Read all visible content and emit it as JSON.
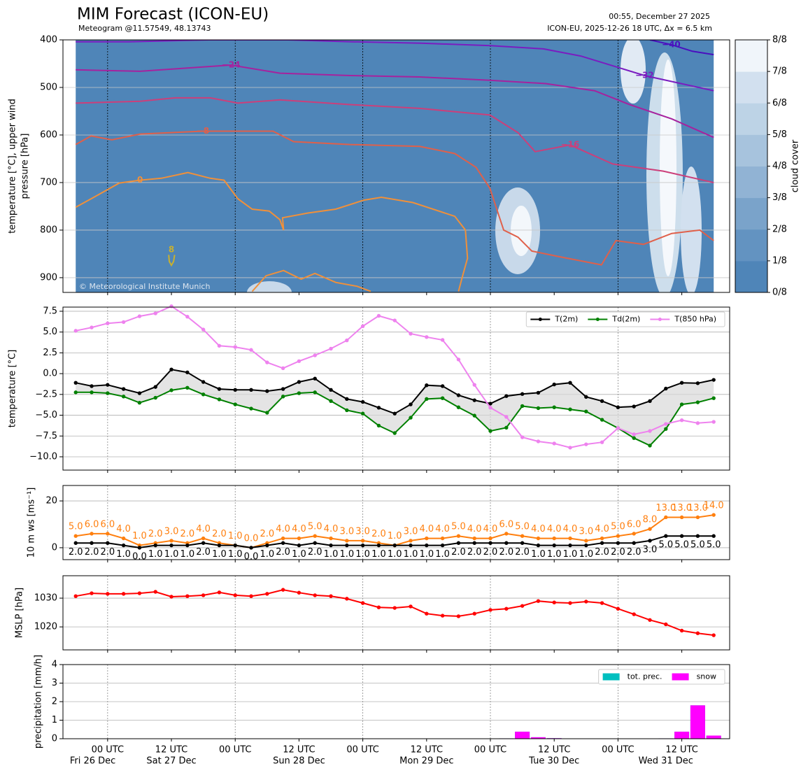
{
  "header": {
    "title": "MIM Forecast (ICON-EU)",
    "subtitle": "Meteogram @11.57549, 48.13743",
    "timestamp": "00:55, December 27 2025",
    "run_info": "ICON-EU, 2025-12-26 18 UTC, Δx = 6.5 km",
    "watermark": "© Meteorological Institute Munich"
  },
  "time_axis": {
    "xlim": [
      -2.4,
      123
    ],
    "xticks": [
      {
        "value": 6,
        "label": "00 UTC"
      },
      {
        "value": 18,
        "label": "12 UTC"
      },
      {
        "value": 30,
        "label": "00 UTC"
      },
      {
        "value": 42,
        "label": "12 UTC"
      },
      {
        "value": 54,
        "label": "00 UTC"
      },
      {
        "value": 66,
        "label": "12 UTC"
      },
      {
        "value": 78,
        "label": "00 UTC"
      },
      {
        "value": 90,
        "label": "12 UTC"
      },
      {
        "value": 102,
        "label": "00 UTC"
      },
      {
        "value": 114,
        "label": "12 UTC"
      }
    ],
    "date_labels": [
      {
        "value": 3.2,
        "label": "Fri 26 Dec"
      },
      {
        "value": 18,
        "label": "Sat 27 Dec"
      },
      {
        "value": 42,
        "label": "Sun 28 Dec"
      },
      {
        "value": 66,
        "label": "Mon 29 Dec"
      },
      {
        "value": 90,
        "label": "Tue 30 Dec"
      },
      {
        "value": 111,
        "label": "Wed 31 Dec"
      }
    ]
  },
  "chart_data": [
    {
      "type": "contour",
      "ylabel": [
        "temperature [°C], upper wind",
        "pressure [hPa]"
      ],
      "ylim": [
        931,
        400
      ],
      "yticks": [
        400,
        500,
        600,
        700,
        800,
        900
      ],
      "grid": true,
      "contours": [
        {
          "label": "−40",
          "color": "#4a0fbf",
          "x": [
            108,
            112,
            116,
            120
          ],
          "p": [
            400,
            410,
            424,
            431
          ]
        },
        {
          "label": "−32",
          "color": "#7a1cc0",
          "x": [
            0,
            10,
            25,
            40,
            52,
            65,
            78,
            88,
            95,
            100,
            107,
            120
          ],
          "p": [
            404,
            404,
            400,
            400,
            404,
            407,
            412,
            419,
            434,
            451,
            475,
            507
          ]
        },
        {
          "label": "−24",
          "color": "#a6229e",
          "x": [
            0,
            12.1,
            20,
            29.2,
            38.4,
            51.6,
            64.7,
            77.9,
            88.4,
            97.6,
            104.2,
            112.1,
            120
          ],
          "p": [
            463,
            466,
            460,
            453,
            470,
            475,
            478,
            485,
            492,
            507,
            536,
            566,
            605
          ]
        },
        {
          "label": "−16",
          "color": "#cc3f7a",
          "x": [
            0,
            12.1,
            18.7,
            25.3,
            30.5,
            38.4,
            51.6,
            64.7,
            77.9,
            83.2,
            86.4,
            93,
            101,
            110.5,
            120
          ],
          "p": [
            533,
            529,
            522,
            522,
            533,
            526,
            536,
            544,
            558,
            595,
            635,
            621,
            661,
            676,
            700
          ]
        },
        {
          "label": "−8",
          "color": "#e0604a",
          "x": [
            0,
            2.9,
            6.8,
            12.1,
            23.9,
            37.1,
            41,
            51.6,
            64.7,
            71.3,
            75.3,
            77.9,
            79.2,
            80.5,
            83.2,
            85.8,
            91,
            98.9,
            101.6,
            106.8,
            112.1,
            117.4,
            120
          ],
          "p": [
            620,
            602,
            610,
            598,
            592,
            592,
            614,
            620,
            624,
            639,
            668,
            712,
            756,
            800,
            815,
            844,
            856,
            873,
            822,
            830,
            807,
            800,
            822
          ]
        },
        {
          "label": "0",
          "color": "#f0903a",
          "x": [
            0,
            2.9,
            8.2,
            12.1,
            16.1,
            21.1,
            25.3,
            27.9,
            30.5,
            33.2,
            36.4,
            38.4,
            39.1,
            38.9,
            43.7,
            48.9,
            54.2,
            57.5,
            63.4,
            71.3,
            73.3,
            73.7,
            72.6,
            72,
            null,
            33.2,
            35.8,
            39.1,
            42.4,
            45,
            48.9,
            52.9,
            55.5
          ],
          "p": [
            752,
            734,
            701,
            695,
            691,
            679,
            691,
            695,
            734,
            756,
            760,
            778,
            800,
            774,
            764,
            756,
            737,
            731,
            742,
            771,
            800,
            859,
            903,
            929,
            null,
            929,
            896,
            885,
            903,
            891,
            910,
            918,
            929
          ]
        },
        {
          "label": "8",
          "color": "#c8b030",
          "x": [
            17.5,
            17.6,
            18,
            18.4,
            18.6
          ],
          "p": [
            852,
            866,
            874,
            866,
            852
          ]
        }
      ],
      "colorbar": {
        "label": "cloud cover",
        "ticks": [
          "0/8",
          "1/8",
          "2/8",
          "3/8",
          "4/8",
          "5/8",
          "6/8",
          "7/8",
          "8/8"
        ],
        "colors": [
          "#4f85b8",
          "#6393c1",
          "#7aa3ca",
          "#91b3d4",
          "#a7c3dd",
          "#bdd3e6",
          "#d2e0ef",
          "#f0f5fa"
        ]
      }
    },
    {
      "type": "line",
      "ylabel": "temperature [°C]",
      "ylim": [
        -11.6,
        8.0
      ],
      "yticks": [
        7.5,
        {
          "value": 5,
          "label": "5.0"
        },
        2.5,
        {
          "value": 0,
          "label": "0.0"
        },
        {
          "value": -2.5,
          "label": "−2.5"
        },
        {
          "value": -5,
          "label": "−5.0"
        },
        {
          "value": -7.5,
          "label": "−7.5"
        },
        {
          "value": -10,
          "label": "−10.0"
        }
      ],
      "grid": true,
      "legend": "upper right",
      "fill_between": true,
      "x": [
        0,
        3,
        6,
        9,
        12,
        15,
        18,
        21,
        24,
        27,
        30,
        33,
        36,
        39,
        42,
        45,
        48,
        51,
        54,
        57,
        60,
        63,
        66,
        69,
        72,
        75,
        78,
        81,
        84,
        87,
        90,
        93,
        96,
        99,
        102,
        105,
        108,
        111,
        114,
        117,
        120
      ],
      "series": [
        {
          "name": "T(2m)",
          "color": "#000000",
          "values": [
            -1.1,
            -1.5,
            -1.35,
            -1.85,
            -2.35,
            -1.6,
            0.5,
            0.15,
            -1.0,
            -1.85,
            -1.95,
            -1.95,
            -2.1,
            -1.85,
            -1.0,
            -0.6,
            -1.95,
            -3.05,
            -3.4,
            -4.1,
            -4.8,
            -3.7,
            -1.4,
            -1.5,
            -2.6,
            -3.2,
            -3.6,
            -2.7,
            -2.45,
            -2.3,
            -1.3,
            -1.1,
            -2.8,
            -3.3,
            -4.05,
            -3.95,
            -3.3,
            -1.8,
            -1.1,
            -1.15,
            -0.75
          ]
        },
        {
          "name": "Td(2m)",
          "color": "#008000",
          "values": [
            -2.25,
            -2.25,
            -2.35,
            -2.75,
            -3.5,
            -2.9,
            -2.0,
            -1.7,
            -2.5,
            -3.1,
            -3.7,
            -4.2,
            -4.7,
            -2.75,
            -2.35,
            -2.25,
            -3.3,
            -4.4,
            -4.8,
            -6.25,
            -7.15,
            -5.3,
            -3.05,
            -2.95,
            -4.05,
            -5.05,
            -6.9,
            -6.5,
            -3.9,
            -4.15,
            -4.05,
            -4.3,
            -4.55,
            -5.55,
            -6.55,
            -7.75,
            -8.65,
            -6.65,
            -3.7,
            -3.45,
            -2.95
          ]
        },
        {
          "name": "T(850 hPa)",
          "color": "#ee82ee",
          "values": [
            5.15,
            5.55,
            6.05,
            6.2,
            6.9,
            7.25,
            8.1,
            6.85,
            5.3,
            3.35,
            3.2,
            2.85,
            1.35,
            0.65,
            1.5,
            2.2,
            3.0,
            4.0,
            5.7,
            6.95,
            6.4,
            4.8,
            4.4,
            4.05,
            1.7,
            -1.35,
            -4.1,
            -5.2,
            -7.65,
            -8.15,
            -8.4,
            -8.9,
            -8.5,
            -8.25,
            -6.55,
            -7.3,
            -6.9,
            -6.05,
            -5.6,
            -5.95,
            -5.8
          ]
        }
      ]
    },
    {
      "type": "line",
      "ylabel": "10 m ws [ms⁻¹]",
      "ylim": [
        -5.1,
        26.6
      ],
      "yticks": [
        0,
        20
      ],
      "grid": true,
      "x": [
        0,
        3,
        6,
        9,
        12,
        15,
        18,
        21,
        24,
        27,
        30,
        33,
        36,
        39,
        42,
        45,
        48,
        51,
        54,
        57,
        60,
        63,
        66,
        69,
        72,
        75,
        78,
        81,
        84,
        87,
        90,
        93,
        96,
        99,
        102,
        105,
        108,
        111,
        114,
        117,
        120
      ],
      "series": [
        {
          "color": "#ff7f0e",
          "values": [
            5,
            6,
            6,
            4,
            1,
            2,
            3,
            2,
            4,
            2,
            1,
            0,
            2,
            4,
            4,
            5,
            4,
            3,
            3,
            2,
            1,
            3,
            4,
            4,
            5,
            4,
            4,
            6,
            5,
            4,
            4,
            4,
            3,
            4,
            5,
            6,
            8,
            13,
            13,
            13,
            14
          ],
          "value_labels": [
            "5.0",
            "6.0",
            "6.0",
            "4.0",
            "1.0",
            "2.0",
            "3.0",
            "2.0",
            "4.0",
            "2.0",
            "1.0",
            "0.0",
            "2.0",
            "4.0",
            "4.0",
            "5.0",
            "4.0",
            "3.0",
            "3.0",
            "2.0",
            "1.0",
            "3.0",
            "4.0",
            "4.0",
            "5.0",
            "4.0",
            "4.0",
            "6.0",
            "5.0",
            "4.0",
            "4.0",
            "4.0",
            "3.0",
            "4.0",
            "5.0",
            "6.0",
            "8.0",
            "13.0",
            "13.0",
            "13.0",
            "14.0"
          ]
        },
        {
          "color": "#000000",
          "values": [
            2,
            2,
            2,
            1,
            0,
            1,
            1,
            1,
            2,
            1,
            1,
            0,
            1,
            2,
            1,
            2,
            1,
            1,
            1,
            1,
            1,
            1,
            1,
            1,
            2,
            2,
            2,
            2,
            2,
            1,
            1,
            1,
            1,
            2,
            2,
            2,
            3,
            5,
            5,
            5,
            5
          ],
          "value_labels": [
            "2.0",
            "2.0",
            "2.0",
            "1.0",
            "0.0",
            "1.0",
            "1.0",
            "1.0",
            "2.0",
            "1.0",
            "1.0",
            "0.0",
            "1.0",
            "2.0",
            "1.0",
            "2.0",
            "1.0",
            "1.0",
            "1.0",
            "1.0",
            "1.0",
            "1.0",
            "1.0",
            "1.0",
            "2.0",
            "2.0",
            "2.0",
            "2.0",
            "2.0",
            "1.0",
            "1.0",
            "1.0",
            "1.0",
            "2.0",
            "2.0",
            "2.0",
            "3.0",
            "5.0",
            "5.0",
            "5.0",
            "5.0"
          ]
        }
      ]
    },
    {
      "type": "line",
      "ylabel": "MSLP [hPa]",
      "ylim": [
        1012,
        1037.8
      ],
      "yticks": [
        1020,
        1030
      ],
      "grid": true,
      "x": [
        0,
        3,
        6,
        9,
        12,
        15,
        18,
        21,
        24,
        27,
        30,
        33,
        36,
        39,
        42,
        45,
        48,
        51,
        54,
        57,
        60,
        63,
        66,
        69,
        72,
        75,
        78,
        81,
        84,
        87,
        90,
        93,
        96,
        99,
        102,
        105,
        108,
        111,
        114,
        117,
        120
      ],
      "series": [
        {
          "color": "#ff0000",
          "values": [
            1030.7,
            1031.7,
            1031.5,
            1031.5,
            1031.7,
            1032.2,
            1030.5,
            1030.7,
            1031.0,
            1032.0,
            1031.0,
            1030.7,
            1031.5,
            1032.9,
            1031.9,
            1031.0,
            1030.7,
            1029.8,
            1028.3,
            1026.8,
            1026.6,
            1027.1,
            1024.6,
            1023.9,
            1023.7,
            1024.6,
            1025.9,
            1026.3,
            1027.3,
            1029.0,
            1028.5,
            1028.3,
            1028.8,
            1028.3,
            1026.3,
            1024.4,
            1022.4,
            1020.9,
            1018.7,
            1017.8,
            1017.1
          ]
        }
      ]
    },
    {
      "type": "bar",
      "ylabel": "precipitation [mm/h]",
      "ylim": [
        0,
        4
      ],
      "yticks": [
        0,
        1,
        2,
        3,
        4
      ],
      "grid": true,
      "legend": "upper right",
      "x": [
        81,
        84,
        87,
        90,
        108,
        111,
        114,
        117,
        120
      ],
      "series": [
        {
          "name": "tot. prec.",
          "color": "#00bfbf",
          "values": [
            0.02,
            0.38,
            0.08,
            0.03,
            0.01,
            0.02,
            0.38,
            1.8,
            0.17
          ]
        },
        {
          "name": "snow",
          "color": "#ff00ff",
          "values": [
            0.02,
            0.38,
            0.08,
            0.03,
            0.01,
            0.02,
            0.38,
            1.8,
            0.17
          ]
        }
      ]
    }
  ]
}
